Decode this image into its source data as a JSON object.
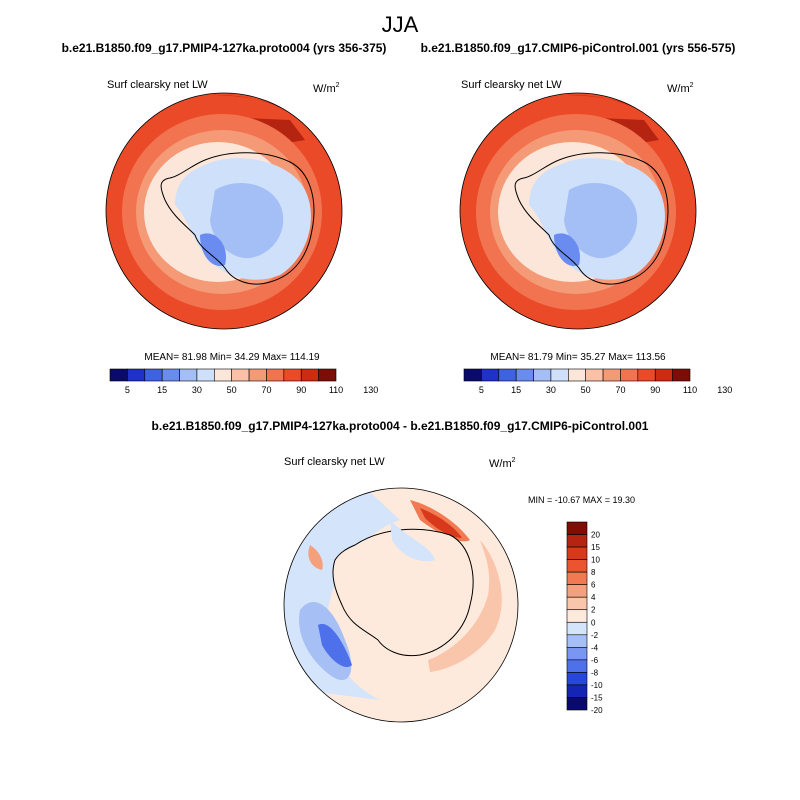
{
  "page": {
    "title": "JJA"
  },
  "colors": {
    "abs_scale": [
      "#0a0a6e",
      "#1f31c8",
      "#3f62e3",
      "#6a8cf0",
      "#a3bff5",
      "#cfe0fa",
      "#fbe6d9",
      "#f9c1a6",
      "#f59a77",
      "#f2734f",
      "#ea4a28",
      "#cf2b12",
      "#7f0c06"
    ],
    "diff_scale": [
      "#0a0a6e",
      "#1424b4",
      "#2847d8",
      "#4f70eb",
      "#7896f2",
      "#a6c0f6",
      "#d4e4fa",
      "#fdeadc",
      "#f9c6ab",
      "#f5a07c",
      "#f27a52",
      "#ea5530",
      "#d8391a",
      "#b52410",
      "#7f0c06"
    ]
  },
  "chart_data": [
    {
      "type": "heatmap",
      "projection": "south-polar-stereographic",
      "title": "b.e21.B1850.f09_g17.PMIP4-127ka.proto004 (yrs 356-375)",
      "left_label": "Surf clearsky net LW",
      "units_base": "W/m",
      "units_exp": "2",
      "stats": "MEAN=  81.98  Min=  34.29  Max= 114.19",
      "mean": 81.98,
      "min": 34.29,
      "max": 114.19,
      "colorbar_levels": [
        5,
        15,
        30,
        50,
        70,
        90,
        110,
        130
      ],
      "colorbar_labels": [
        "5",
        "15",
        "30",
        "50",
        "70",
        "90",
        "110",
        "130"
      ]
    },
    {
      "type": "heatmap",
      "projection": "south-polar-stereographic",
      "title": "b.e21.B1850.f09_g17.CMIP6-piControl.001 (yrs 556-575)",
      "left_label": "Surf clearsky net LW",
      "units_base": "W/m",
      "units_exp": "2",
      "stats": "MEAN=  81.79  Min=  35.27  Max= 113.56",
      "mean": 81.79,
      "min": 35.27,
      "max": 113.56,
      "colorbar_levels": [
        5,
        15,
        30,
        50,
        70,
        90,
        110,
        130
      ],
      "colorbar_labels": [
        "5",
        "15",
        "30",
        "50",
        "70",
        "90",
        "110",
        "130"
      ]
    },
    {
      "type": "heatmap",
      "projection": "south-polar-stereographic",
      "title": "b.e21.B1850.f09_g17.PMIP4-127ka.proto004 - b.e21.B1850.f09_g17.CMIP6-piControl.001",
      "left_label": "Surf clearsky net LW",
      "units_base": "W/m",
      "units_exp": "2",
      "stats": "MIN = -10.67 MAX =  19.30",
      "min": -10.67,
      "max": 19.3,
      "colorbar_levels": [
        20,
        15,
        10,
        8,
        6,
        4,
        2,
        0,
        -2,
        -4,
        -6,
        -8,
        -10,
        -15,
        -20
      ],
      "colorbar_labels": [
        "20",
        "15",
        "10",
        "8",
        "6",
        "4",
        "2",
        "0",
        "-2",
        "-4",
        "-6",
        "-8",
        "-10",
        "-15",
        "-20"
      ]
    }
  ]
}
